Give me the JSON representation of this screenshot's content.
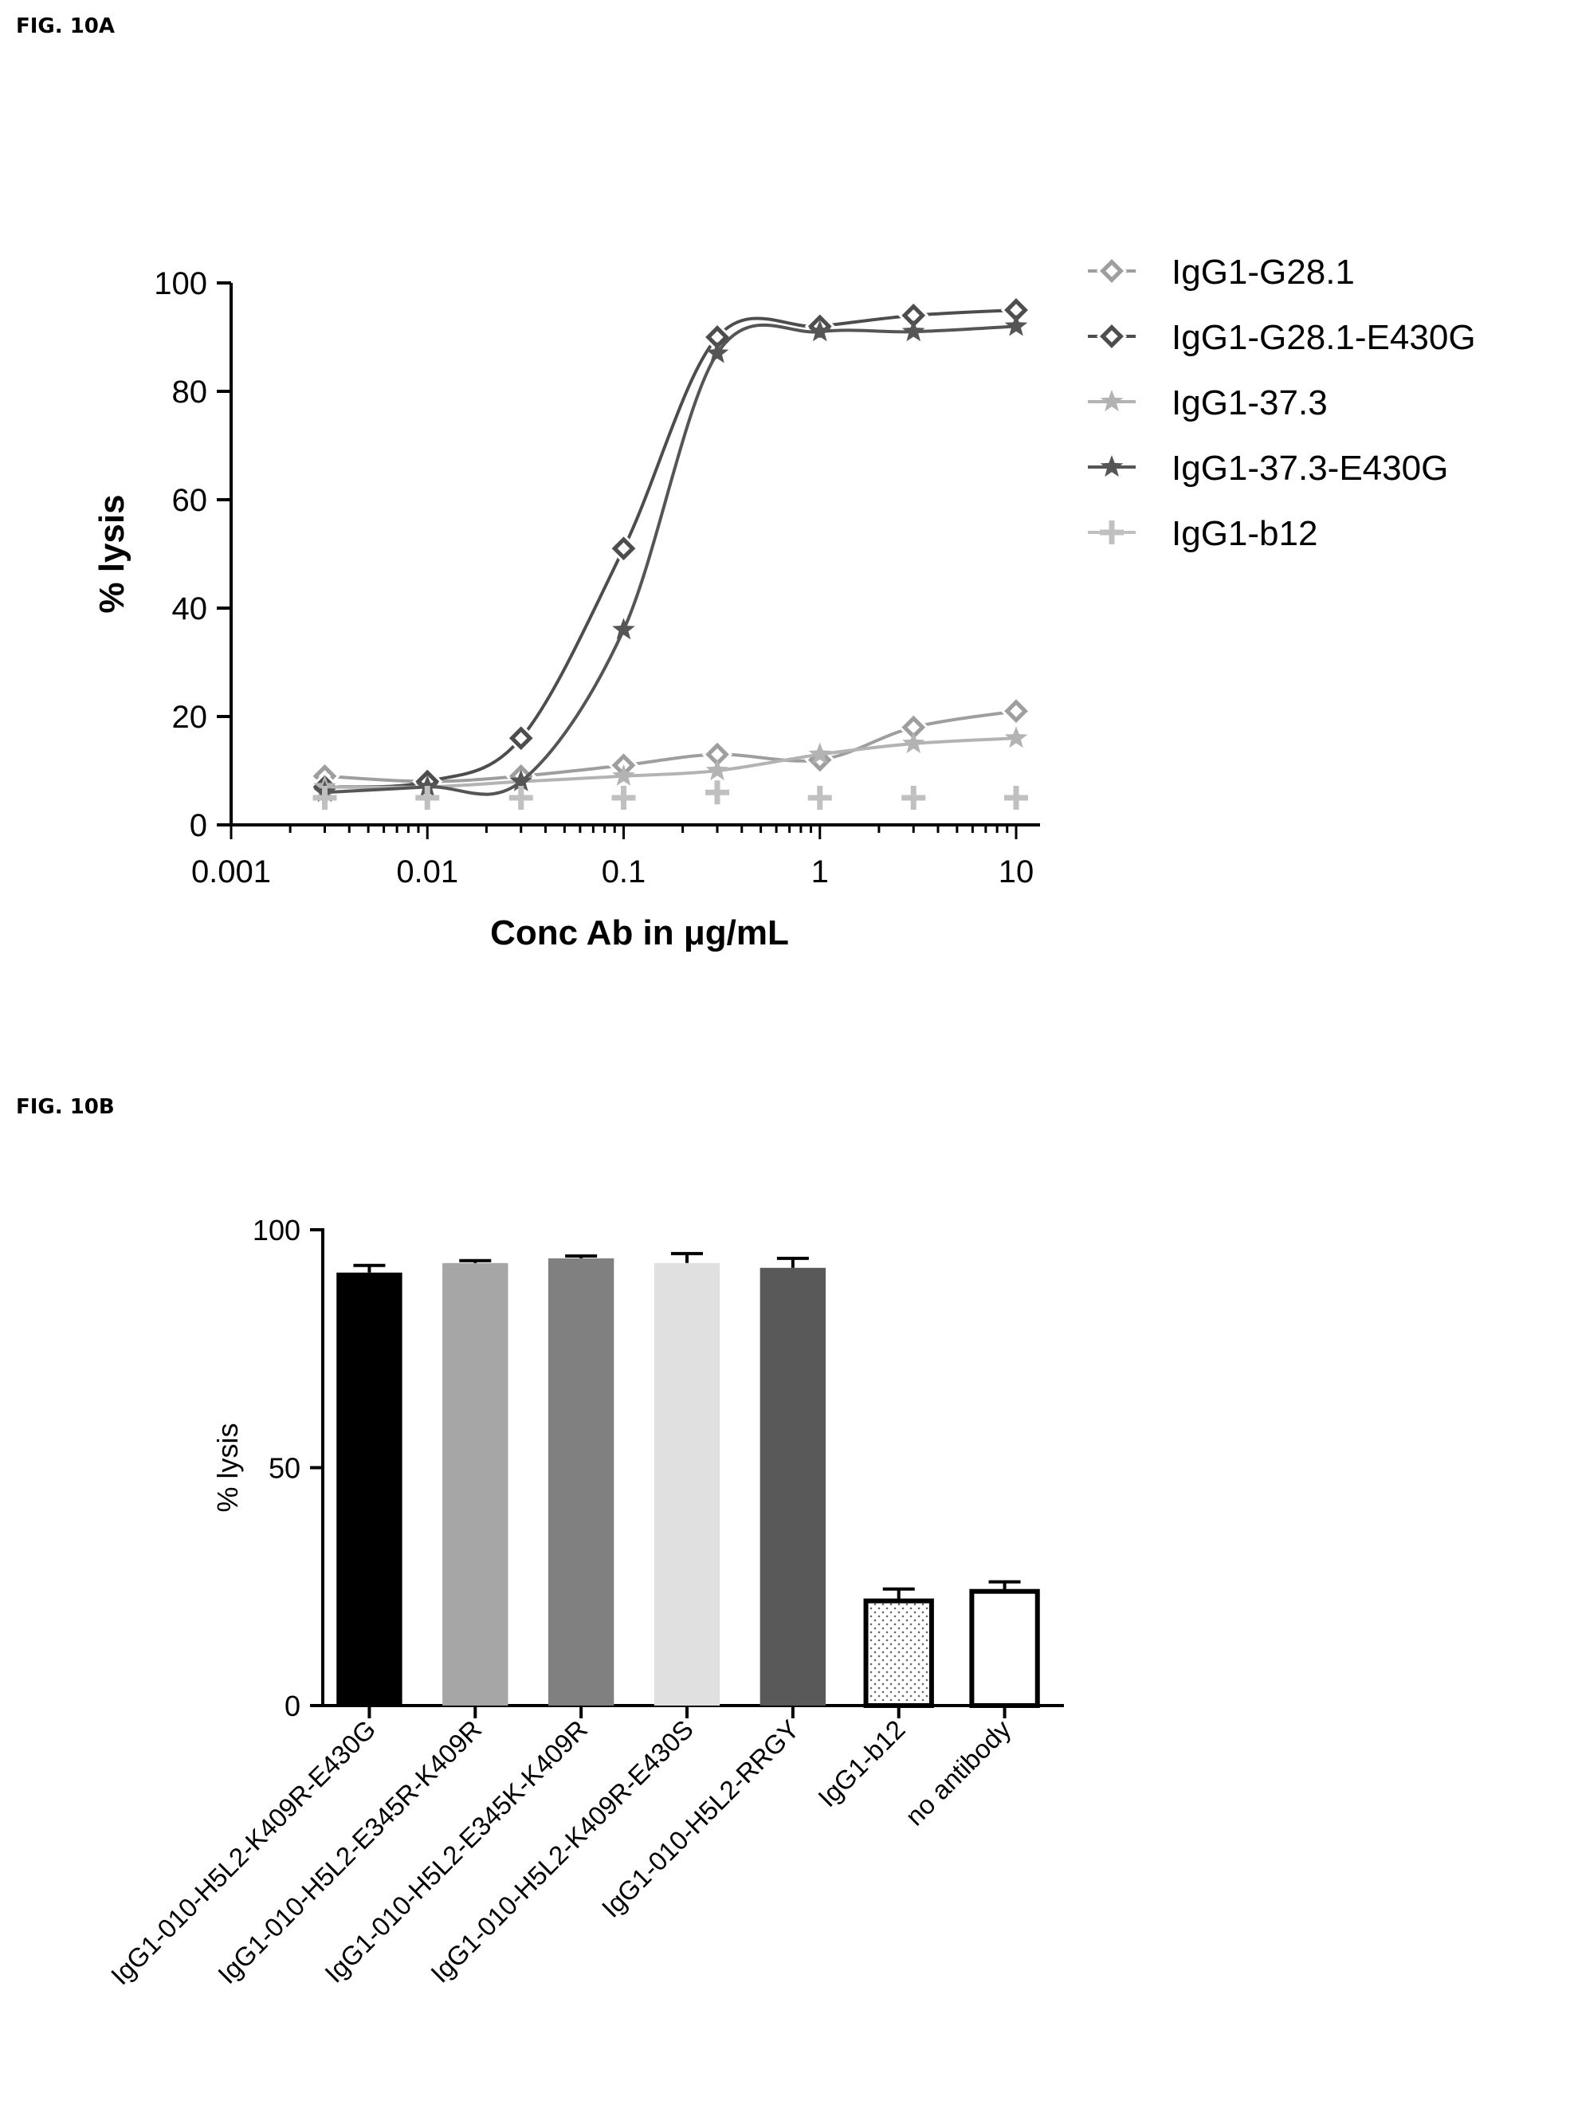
{
  "figures": {
    "a_label": "FIG. 10A",
    "b_label": "FIG. 10B"
  },
  "chart_data": [
    {
      "type": "line",
      "xscale": "log",
      "xlabel": "Conc Ab in μg/mL",
      "ylabel": "% lysis",
      "xlim": [
        0.001,
        10
      ],
      "ylim": [
        0,
        100
      ],
      "xticks": [
        "0.001",
        "0.01",
        "0.1",
        "1",
        "10"
      ],
      "yticks": [
        "0",
        "20",
        "40",
        "60",
        "80",
        "100"
      ],
      "legend_position": "right",
      "x": [
        0.003,
        0.01,
        0.03,
        0.1,
        0.3,
        1,
        3,
        10
      ],
      "series": [
        {
          "name": "IgG1-G28.1",
          "marker": "diamond-open",
          "color": "#9e9e9e",
          "values": [
            9,
            8,
            9,
            11,
            13,
            12,
            18,
            21
          ]
        },
        {
          "name": "IgG1-G28.1-E430G",
          "marker": "diamond-open",
          "color": "#4d4d4d",
          "values": [
            7,
            8,
            16,
            51,
            90,
            92,
            94,
            95
          ]
        },
        {
          "name": "IgG1-37.3",
          "marker": "star",
          "color": "#b3b3b3",
          "values": [
            7,
            7,
            8,
            9,
            10,
            13,
            15,
            16
          ]
        },
        {
          "name": "IgG1-37.3-E430G",
          "marker": "star",
          "color": "#555555",
          "values": [
            6,
            7,
            8,
            36,
            87,
            91,
            91,
            92
          ]
        },
        {
          "name": "IgG1-b12",
          "marker": "plus",
          "color": "#c0c0c0",
          "values": [
            5,
            5,
            5,
            5,
            6,
            5,
            5,
            5
          ]
        }
      ]
    },
    {
      "type": "bar",
      "ylabel": "% lysis",
      "ylim": [
        0,
        100
      ],
      "yticks": [
        "0",
        "50",
        "100"
      ],
      "categories": [
        "IgG1-010-H5L2-K409R-E430G",
        "IgG1-010-H5L2-E345R-K409R",
        "IgG1-010-H5L2-E345K-K409R",
        "IgG1-010-H5L2-K409R-E430S",
        "IgG1-010-H5L2-RRGY",
        "IgG1-b12",
        "no antibody"
      ],
      "values": [
        91,
        93,
        94,
        93,
        92,
        22,
        24
      ],
      "errors": [
        1.5,
        0.5,
        0.5,
        2,
        2,
        2.5,
        2
      ],
      "fills": [
        "#000000",
        "#a6a6a6",
        "#808080",
        "#e0e0e0",
        "#595959",
        "dotted",
        "#ffffff"
      ]
    }
  ]
}
